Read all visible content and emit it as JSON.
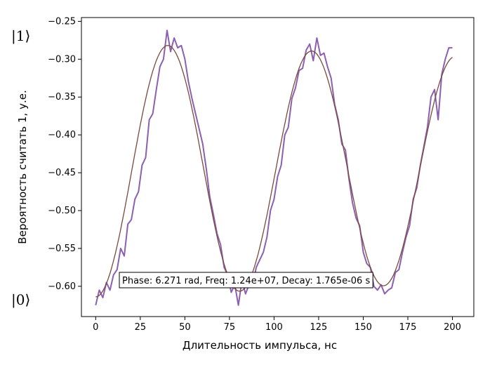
{
  "chart_data": {
    "type": "line",
    "xlabel": "Длительность импульса, нс",
    "ylabel": "Вероятность считать 1, у.е.",
    "xlim": [
      -8,
      212
    ],
    "ylim": [
      -0.64,
      -0.245
    ],
    "x_ticks": [
      0,
      25,
      50,
      75,
      100,
      125,
      150,
      175,
      200
    ],
    "y_ticks": [
      -0.6,
      -0.55,
      -0.5,
      -0.45,
      -0.4,
      -0.35,
      -0.3,
      -0.25
    ],
    "y_tick_labels": [
      "−0.60",
      "−0.55",
      "−0.50",
      "−0.45",
      "−0.40",
      "−0.35",
      "−0.30",
      "−0.25"
    ],
    "grid": false,
    "state_labels": {
      "top": "|1⟩",
      "bottom": "|0⟩"
    },
    "annotation": "Phase: 6.271 rad, Freq: 1.24e+07, Decay: 1.765e-06 s",
    "series": [
      {
        "color": "#8c5fb0",
        "x": [
          0,
          2,
          4,
          6,
          8,
          10,
          12,
          14,
          16,
          18,
          20,
          22,
          24,
          26,
          28,
          30,
          32,
          34,
          36,
          38,
          40,
          42,
          44,
          46,
          48,
          50,
          52,
          54,
          56,
          58,
          60,
          62,
          64,
          66,
          68,
          70,
          72,
          74,
          76,
          78,
          80,
          82,
          84,
          86,
          88,
          90,
          92,
          94,
          96,
          98,
          100,
          102,
          104,
          106,
          108,
          110,
          112,
          114,
          116,
          118,
          120,
          122,
          124,
          126,
          128,
          130,
          132,
          134,
          136,
          138,
          140,
          142,
          144,
          146,
          148,
          150,
          152,
          154,
          156,
          158,
          160,
          162,
          164,
          166,
          168,
          170,
          172,
          174,
          176,
          178,
          180,
          182,
          184,
          186,
          188,
          190,
          192,
          194,
          196,
          198,
          200
        ],
        "y": [
          -0.625,
          -0.605,
          -0.615,
          -0.595,
          -0.605,
          -0.585,
          -0.578,
          -0.55,
          -0.56,
          -0.518,
          -0.512,
          -0.485,
          -0.475,
          -0.44,
          -0.43,
          -0.38,
          -0.372,
          -0.34,
          -0.31,
          -0.3,
          -0.262,
          -0.29,
          -0.272,
          -0.285,
          -0.282,
          -0.3,
          -0.33,
          -0.352,
          -0.372,
          -0.392,
          -0.412,
          -0.445,
          -0.482,
          -0.505,
          -0.53,
          -0.545,
          -0.575,
          -0.585,
          -0.608,
          -0.598,
          -0.625,
          -0.592,
          -0.61,
          -0.598,
          -0.6,
          -0.575,
          -0.565,
          -0.555,
          -0.535,
          -0.5,
          -0.485,
          -0.455,
          -0.44,
          -0.4,
          -0.39,
          -0.352,
          -0.338,
          -0.315,
          -0.312,
          -0.288,
          -0.28,
          -0.302,
          -0.272,
          -0.295,
          -0.292,
          -0.31,
          -0.325,
          -0.36,
          -0.38,
          -0.412,
          -0.42,
          -0.458,
          -0.49,
          -0.51,
          -0.52,
          -0.555,
          -0.57,
          -0.575,
          -0.6,
          -0.605,
          -0.598,
          -0.61,
          -0.605,
          -0.602,
          -0.582,
          -0.578,
          -0.555,
          -0.535,
          -0.52,
          -0.485,
          -0.47,
          -0.44,
          -0.415,
          -0.39,
          -0.35,
          -0.34,
          -0.38,
          -0.32,
          -0.3,
          -0.285,
          -0.285
        ]
      },
      {
        "color": "#7a4a3c",
        "function": "damped_cosine",
        "amplitude": 0.168,
        "offset": -0.446,
        "period_ns": 80.65,
        "decay_ns": 1765,
        "phase_rad": 6.271,
        "x_range": [
          0,
          200
        ]
      }
    ]
  }
}
